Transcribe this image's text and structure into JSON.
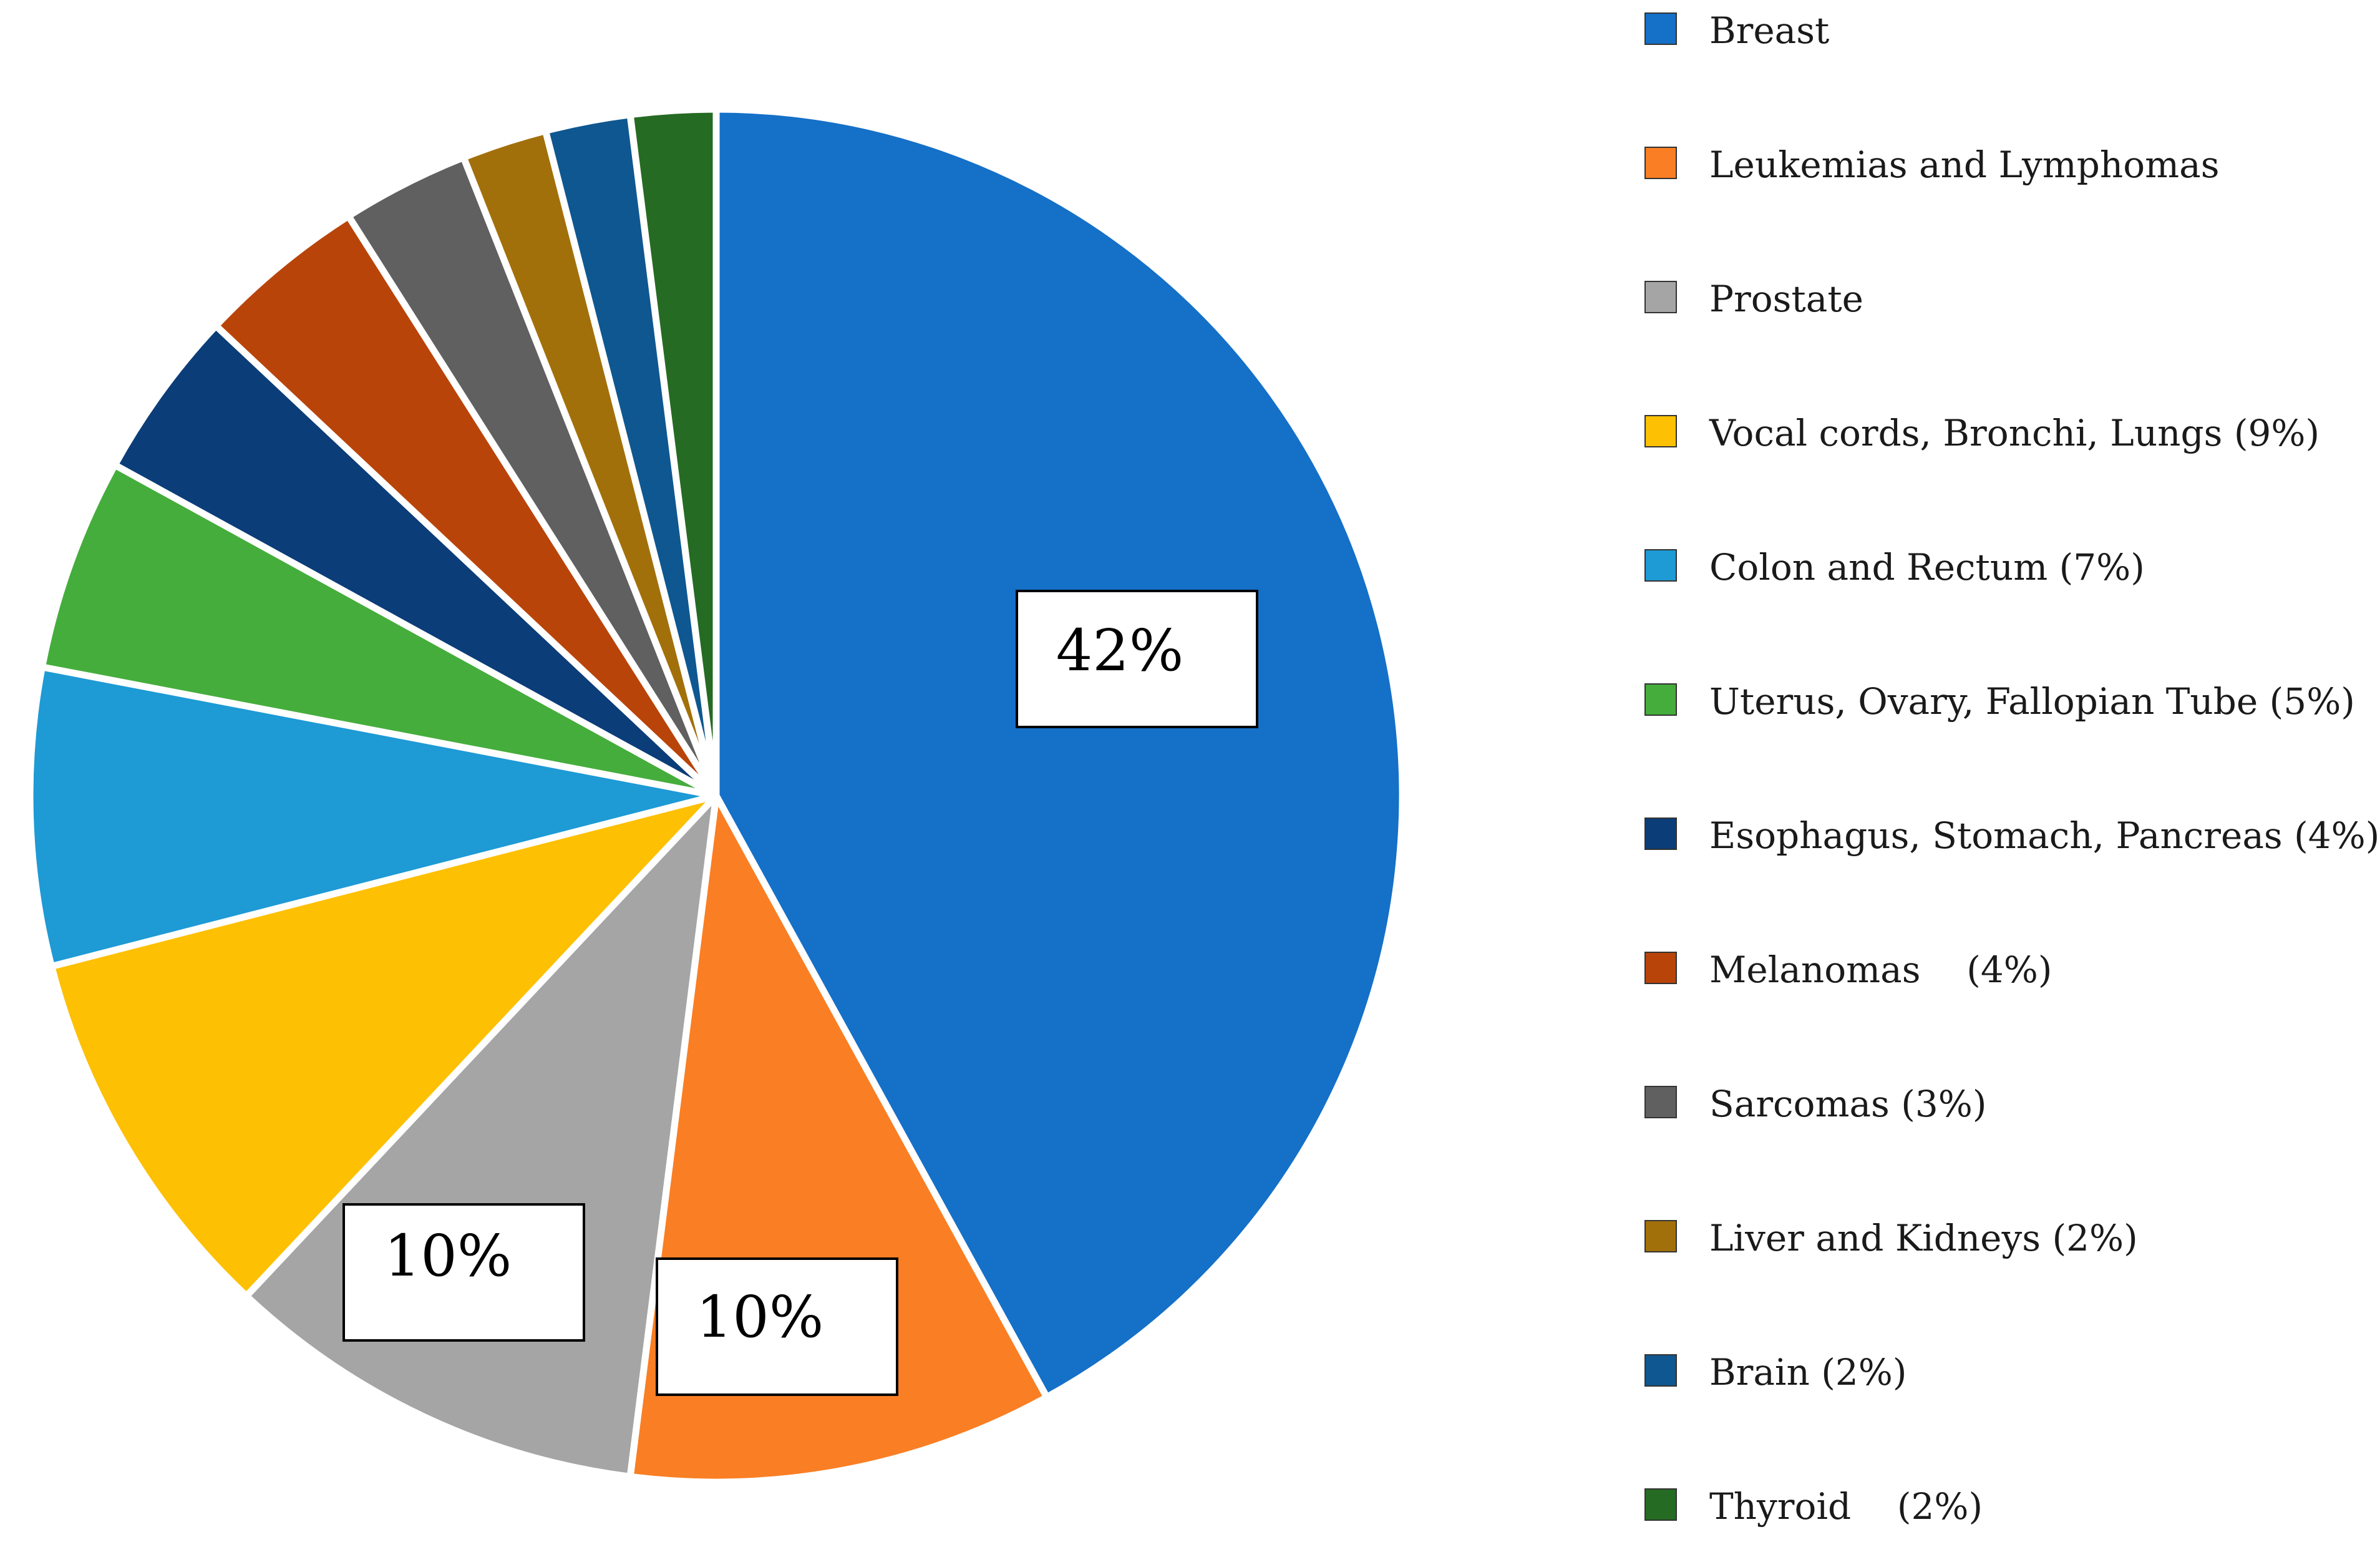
{
  "chart_data": {
    "type": "pie",
    "title": "",
    "start_angle_deg": 0,
    "direction": "clockwise",
    "slices": [
      {
        "name": "Breast",
        "legend": "Breast",
        "value": 42,
        "color": "#1570c8",
        "label": "42%"
      },
      {
        "name": "Leukemias and Lymphomas",
        "legend": "Leukemias and Lymphomas",
        "value": 10,
        "color": "#fa7e23",
        "label": "10%"
      },
      {
        "name": "Prostate",
        "legend": "Prostate",
        "value": 10,
        "color": "#a5a5a5",
        "label": "10%"
      },
      {
        "name": "Vocal cords, Bronchi, Lungs",
        "legend": "Vocal cords, Bronchi, Lungs (9%)",
        "value": 9,
        "color": "#fdc003",
        "label": ""
      },
      {
        "name": "Colon and Rectum",
        "legend": "Colon and Rectum (7%)",
        "value": 7,
        "color": "#1e9ad5",
        "label": ""
      },
      {
        "name": "Uterus, Ovary, Fallopian Tube",
        "legend": "Uterus, Ovary, Fallopian Tube (5%)",
        "value": 5,
        "color": "#45ad3c",
        "label": ""
      },
      {
        "name": "Esophagus, Stomach, Pancreas",
        "legend": "Esophagus, Stomach, Pancreas (4%)",
        "value": 4,
        "color": "#0b3d78",
        "label": ""
      },
      {
        "name": "Melanomas",
        "legend": "Melanomas    (4%)",
        "value": 4,
        "color": "#b9440a",
        "label": ""
      },
      {
        "name": "Sarcomas",
        "legend": "Sarcomas (3%)",
        "value": 3,
        "color": "#606060",
        "label": ""
      },
      {
        "name": "Liver and Kidneys",
        "legend": "Liver and Kidneys (2%)",
        "value": 2,
        "color": "#a2700a",
        "label": ""
      },
      {
        "name": "Brain",
        "legend": "Brain (2%)",
        "value": 2,
        "color": "#0f5790",
        "label": ""
      },
      {
        "name": "Thyroid",
        "legend": "Thyroid    (2%)",
        "value": 2,
        "color": "#266b23",
        "label": ""
      }
    ],
    "legend_position": "right"
  }
}
